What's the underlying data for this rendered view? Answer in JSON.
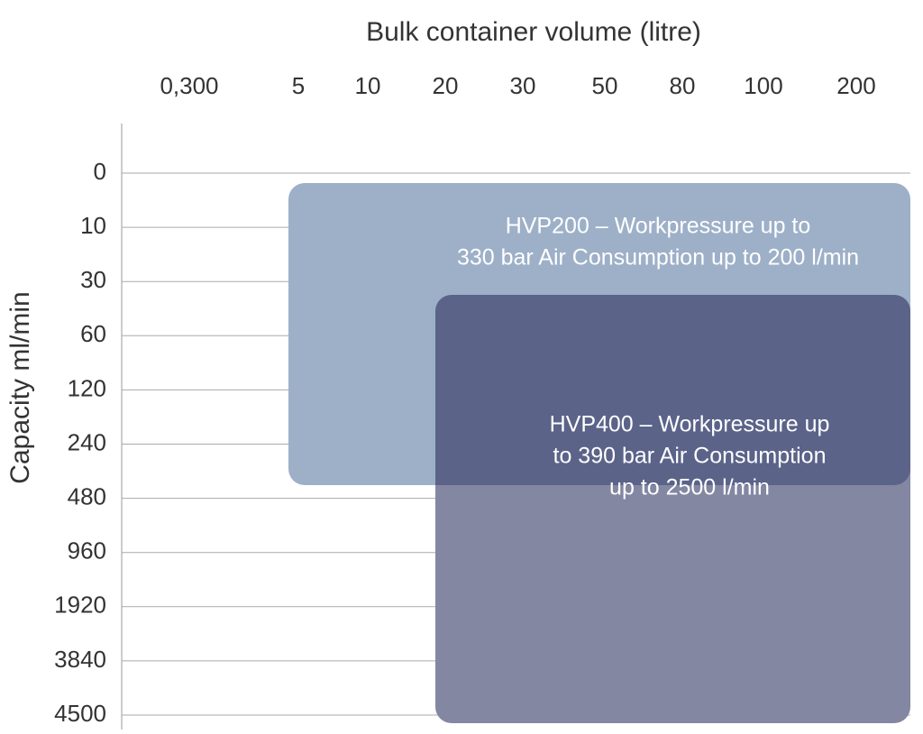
{
  "x_axis": {
    "title": "Bulk container volume (litre)",
    "labels": [
      "0,300",
      "5",
      "10",
      "20",
      "30",
      "50",
      "80",
      "100",
      "200"
    ]
  },
  "y_axis": {
    "title": "Capacity ml/min",
    "labels": [
      "0",
      "10",
      "30",
      "60",
      "120",
      "240",
      "480",
      "960",
      "1920",
      "3840",
      "4500"
    ]
  },
  "boxes": [
    {
      "lines": [
        "HVP200 – Workpressure up to",
        "330 bar Air Consumption up to 200 l/min"
      ]
    },
    {
      "lines": [
        "HVP400 – Workpressure up",
        "to 390 bar Air Consumption",
        "up to 2500 l/min"
      ]
    }
  ]
}
